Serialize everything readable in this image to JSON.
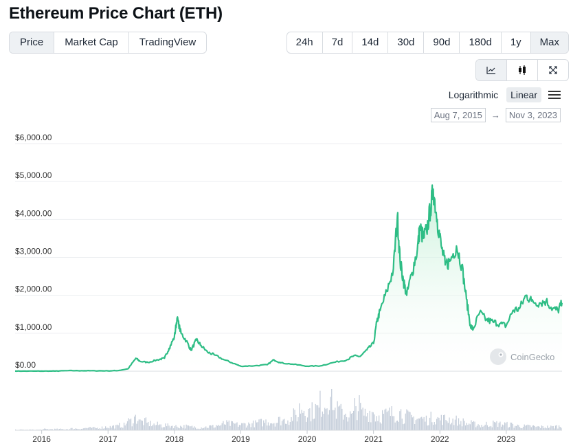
{
  "title": "Ethereum Price Chart (ETH)",
  "view_tabs": [
    {
      "label": "Price",
      "active": true
    },
    {
      "label": "Market Cap",
      "active": false
    },
    {
      "label": "TradingView",
      "active": false
    }
  ],
  "ranges": [
    {
      "label": "24h",
      "active": false
    },
    {
      "label": "7d",
      "active": false
    },
    {
      "label": "14d",
      "active": false
    },
    {
      "label": "30d",
      "active": false
    },
    {
      "label": "90d",
      "active": false
    },
    {
      "label": "180d",
      "active": false
    },
    {
      "label": "1y",
      "active": false
    },
    {
      "label": "Max",
      "active": true
    }
  ],
  "chart_modes": [
    {
      "icon": "line-chart-icon",
      "active": true
    },
    {
      "icon": "candlestick-icon",
      "active": false
    },
    {
      "icon": "expand-icon",
      "active": false
    }
  ],
  "scale": {
    "logarithmic": "Logarithmic",
    "linear": "Linear",
    "active": "linear"
  },
  "date_range": {
    "from": "Aug 7, 2015",
    "to": "Nov 3, 2023"
  },
  "watermark": "CoinGecko",
  "colors": {
    "line": "#2ebd85",
    "fill_top": "#d6f5e3",
    "volume": "#c5ceda",
    "grid": "#eceef1"
  },
  "chart_data": {
    "type": "area",
    "ylim": [
      0,
      6000
    ],
    "yticks": [
      "$0.00",
      "$1,000.00",
      "$2,000.00",
      "$3,000.00",
      "$4,000.00",
      "$5,000.00",
      "$6,000.00"
    ],
    "xticks": [
      "2016",
      "2017",
      "2018",
      "2019",
      "2020",
      "2021",
      "2022",
      "2023"
    ],
    "x_domain": [
      2015.6,
      2023.84
    ],
    "grid": true,
    "series": [
      {
        "x": [
          2015.6,
          2015.8,
          2016.0,
          2016.2,
          2016.4,
          2016.6,
          2016.8,
          2017.0,
          2017.15,
          2017.3,
          2017.42,
          2017.48,
          2017.6,
          2017.75,
          2017.85,
          2017.92,
          2018.0,
          2018.04,
          2018.1,
          2018.18,
          2018.25,
          2018.33,
          2018.4,
          2018.5,
          2018.6,
          2018.75,
          2018.9,
          2019.0,
          2019.2,
          2019.4,
          2019.5,
          2019.6,
          2019.8,
          2020.0,
          2020.2,
          2020.4,
          2020.6,
          2020.7,
          2020.8,
          2020.9,
          2021.0,
          2021.05,
          2021.1,
          2021.2,
          2021.3,
          2021.36,
          2021.4,
          2021.45,
          2021.5,
          2021.58,
          2021.66,
          2021.7,
          2021.75,
          2021.8,
          2021.86,
          2021.9,
          2021.96,
          2022.02,
          2022.08,
          2022.15,
          2022.25,
          2022.33,
          2022.4,
          2022.46,
          2022.5,
          2022.6,
          2022.7,
          2022.8,
          2022.9,
          2023.0,
          2023.1,
          2023.2,
          2023.3,
          2023.38,
          2023.5,
          2023.6,
          2023.7,
          2023.78,
          2023.84
        ],
        "y": [
          1,
          1,
          1,
          2,
          14,
          12,
          10,
          8,
          15,
          60,
          340,
          260,
          230,
          300,
          340,
          600,
          900,
          1400,
          1000,
          800,
          550,
          820,
          680,
          500,
          430,
          300,
          200,
          130,
          140,
          170,
          300,
          220,
          180,
          130,
          140,
          230,
          300,
          400,
          390,
          560,
          730,
          1300,
          1600,
          2100,
          2700,
          4100,
          2900,
          2400,
          2000,
          2600,
          3200,
          3800,
          3500,
          3700,
          4300,
          4800,
          4000,
          3300,
          2800,
          2900,
          3300,
          2800,
          1900,
          1200,
          1100,
          1550,
          1350,
          1300,
          1250,
          1200,
          1600,
          1650,
          2000,
          1850,
          1800,
          1850,
          1650,
          1600,
          1800
        ]
      }
    ],
    "volume": [
      1,
      1,
      1,
      1,
      2,
      2,
      2,
      2,
      3,
      3,
      4,
      4,
      5,
      6,
      7,
      9,
      16,
      22,
      15,
      12,
      10,
      9,
      8,
      7,
      7,
      6,
      5,
      6,
      7,
      9,
      12,
      11,
      10,
      11,
      12,
      14,
      16,
      15,
      18,
      20,
      26,
      40,
      34,
      38,
      48,
      60,
      36,
      32,
      26,
      42,
      30,
      33,
      26,
      28,
      30,
      32,
      25,
      22,
      21,
      19,
      22,
      20,
      20,
      18,
      15,
      12,
      11,
      9,
      11,
      12,
      11,
      10,
      8,
      7,
      7,
      6,
      6,
      6,
      7
    ]
  }
}
